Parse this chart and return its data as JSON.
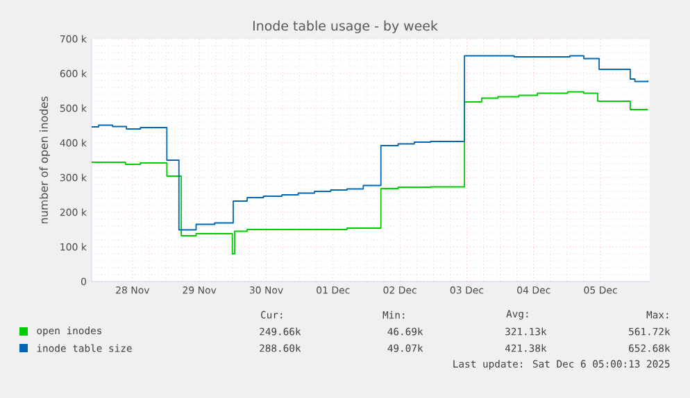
{
  "chart_data": {
    "type": "step",
    "title": "Inode table usage - by week",
    "ylabel": "number of open inodes",
    "xlim": [
      "2025-11-27T21:20",
      "2025-12-06T05:40"
    ],
    "ylim": [
      0,
      700000
    ],
    "xticks": [
      {
        "value": "2025-11-28T12:00",
        "label": "28 Nov"
      },
      {
        "value": "2025-11-29T12:00",
        "label": "29 Nov"
      },
      {
        "value": "2025-11-30T12:00",
        "label": "30 Nov"
      },
      {
        "value": "2025-12-01T12:00",
        "label": "01 Dec"
      },
      {
        "value": "2025-12-02T12:00",
        "label": "02 Dec"
      },
      {
        "value": "2025-12-03T12:00",
        "label": "03 Dec"
      },
      {
        "value": "2025-12-04T12:00",
        "label": "04 Dec"
      },
      {
        "value": "2025-12-05T12:00",
        "label": "05 Dec"
      }
    ],
    "yticks": [
      {
        "value": 0,
        "label": "0"
      },
      {
        "value": 100000,
        "label": "100 k"
      },
      {
        "value": 200000,
        "label": "200 k"
      },
      {
        "value": 300000,
        "label": "300 k"
      },
      {
        "value": 400000,
        "label": "400 k"
      },
      {
        "value": 500000,
        "label": "500 k"
      },
      {
        "value": 600000,
        "label": "600 k"
      },
      {
        "value": 700000,
        "label": "700 k"
      }
    ],
    "grid": true,
    "legend": "bottom",
    "series": [
      {
        "name": "open inodes",
        "color": "#00cc00",
        "x": [
          "2025-11-27T21:20",
          "2025-11-28T09:30",
          "2025-11-28T14:50",
          "2025-11-29T00:20",
          "2025-11-29T05:30",
          "2025-11-29T10:50",
          "2025-11-29T23:20",
          "2025-11-29T23:50",
          "2025-11-30T00:40",
          "2025-11-30T05:10",
          "2025-12-01T17:00",
          "2025-12-02T05:10",
          "2025-12-02T11:20",
          "2025-12-02T23:00",
          "2025-12-03T11:10",
          "2025-12-03T17:20",
          "2025-12-03T23:10",
          "2025-12-04T06:40",
          "2025-12-04T13:20",
          "2025-12-05T00:10",
          "2025-12-05T06:00",
          "2025-12-05T11:00",
          "2025-12-05T22:40",
          "2025-12-06T05:00"
        ],
        "values": [
          344000,
          338000,
          342000,
          304000,
          132000,
          138000,
          138000,
          80000,
          145000,
          150000,
          154000,
          268000,
          272000,
          273000,
          518000,
          529000,
          533000,
          537000,
          543000,
          547000,
          543000,
          520000,
          496000,
          496000
        ]
      },
      {
        "name": "inode table size",
        "color": "#0066b3",
        "x": [
          "2025-11-27T21:20",
          "2025-11-27T23:50",
          "2025-11-28T04:50",
          "2025-11-28T09:50",
          "2025-11-28T14:50",
          "2025-11-29T00:20",
          "2025-11-29T04:40",
          "2025-11-29T10:50",
          "2025-11-29T17:30",
          "2025-11-30T00:10",
          "2025-11-30T05:10",
          "2025-11-30T11:00",
          "2025-11-30T17:40",
          "2025-11-30T23:30",
          "2025-12-01T05:20",
          "2025-12-01T11:10",
          "2025-12-01T17:00",
          "2025-12-01T22:50",
          "2025-12-02T05:10",
          "2025-12-02T11:20",
          "2025-12-02T17:10",
          "2025-12-02T23:00",
          "2025-12-03T11:10",
          "2025-12-04T05:00",
          "2025-12-05T01:00",
          "2025-12-05T06:00",
          "2025-12-05T11:30",
          "2025-12-05T22:40",
          "2025-12-06T00:20",
          "2025-12-06T05:00"
        ],
        "values": [
          446000,
          451000,
          447000,
          440000,
          444000,
          350000,
          149000,
          165000,
          169000,
          232000,
          242000,
          246000,
          250000,
          255000,
          260000,
          264000,
          267000,
          277000,
          392000,
          397000,
          402000,
          404000,
          651000,
          648000,
          651000,
          643000,
          612000,
          584000,
          577000,
          580000
        ]
      }
    ],
    "annotations": [
      "Cur:",
      "Min:",
      "Avg:",
      "Max:",
      "249.66k",
      "46.69k",
      "321.13k",
      "561.72k",
      "288.60k",
      "49.07k",
      "421.38k",
      "652.68k",
      "Last update: Sat Dec  6 05:00:13 2025"
    ]
  }
}
